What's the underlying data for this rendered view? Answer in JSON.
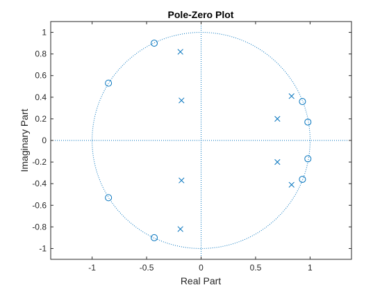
{
  "chart_data": {
    "type": "scatter",
    "title": "Pole-Zero Plot",
    "xlabel": "Real Part",
    "ylabel": "Imaginary Part",
    "xlim": [
      -1.38,
      1.38
    ],
    "ylim": [
      -1.1,
      1.1
    ],
    "xticks": [
      -1,
      -0.5,
      0,
      0.5,
      1
    ],
    "xtick_labels": [
      "-1",
      "-0.5",
      "0",
      "0.5",
      "1"
    ],
    "yticks": [
      -1,
      -0.8,
      -0.6,
      -0.4,
      -0.2,
      0,
      0.2,
      0.4,
      0.6,
      0.8,
      1
    ],
    "ytick_labels": [
      "-1",
      "-0.8",
      "-0.6",
      "-0.4",
      "-0.2",
      "0",
      "0.2",
      "0.4",
      "0.6",
      "0.8",
      "1"
    ],
    "grid": false,
    "unit_circle": true,
    "color": "#0072BD",
    "series": [
      {
        "marker": "o",
        "points": [
          {
            "x": -0.43,
            "y": 0.9
          },
          {
            "x": -0.85,
            "y": 0.53
          },
          {
            "x": -0.85,
            "y": -0.53
          },
          {
            "x": -0.43,
            "y": -0.9
          },
          {
            "x": 0.93,
            "y": 0.36
          },
          {
            "x": 0.98,
            "y": 0.17
          },
          {
            "x": 0.98,
            "y": -0.17
          },
          {
            "x": 0.93,
            "y": -0.36
          }
        ]
      },
      {
        "marker": "x",
        "points": [
          {
            "x": -0.19,
            "y": 0.82
          },
          {
            "x": -0.18,
            "y": 0.37
          },
          {
            "x": -0.18,
            "y": -0.37
          },
          {
            "x": -0.19,
            "y": -0.82
          },
          {
            "x": 0.83,
            "y": 0.41
          },
          {
            "x": 0.7,
            "y": 0.2
          },
          {
            "x": 0.7,
            "y": -0.2
          },
          {
            "x": 0.83,
            "y": -0.41
          }
        ]
      }
    ]
  }
}
